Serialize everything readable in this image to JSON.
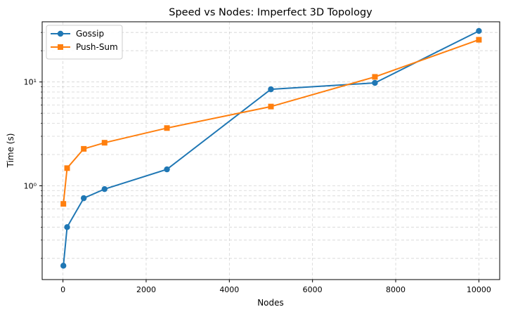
{
  "chart_data": {
    "type": "line",
    "title": "Speed vs Nodes: Imperfect 3D Topology",
    "xlabel": "Nodes",
    "ylabel": "Time (s)",
    "xlim": [
      -500,
      10500
    ],
    "ylim": [
      0.125,
      38
    ],
    "yscale": "log",
    "grid": true,
    "legend_position": "top-left",
    "x_ticks": [
      0,
      2000,
      4000,
      6000,
      8000,
      10000
    ],
    "x_tick_labels": [
      "0",
      "2000",
      "4000",
      "6000",
      "8000",
      "10000"
    ],
    "y_ticks": [
      1,
      10
    ],
    "y_tick_labels": [
      "10⁰",
      "10¹"
    ],
    "series": [
      {
        "name": "Gossip",
        "color": "#1f77b4",
        "marker": "circle",
        "x": [
          10,
          100,
          500,
          1000,
          2500,
          5000,
          7500,
          10000
        ],
        "y": [
          0.17,
          0.4,
          0.76,
          0.93,
          1.44,
          8.5,
          9.8,
          31
        ]
      },
      {
        "name": "Push-Sum",
        "color": "#ff7f0e",
        "marker": "square",
        "x": [
          10,
          100,
          500,
          1000,
          2500,
          5000,
          7500,
          10000
        ],
        "y": [
          0.67,
          1.48,
          2.27,
          2.6,
          3.6,
          5.8,
          11.2,
          25.5
        ]
      }
    ]
  }
}
